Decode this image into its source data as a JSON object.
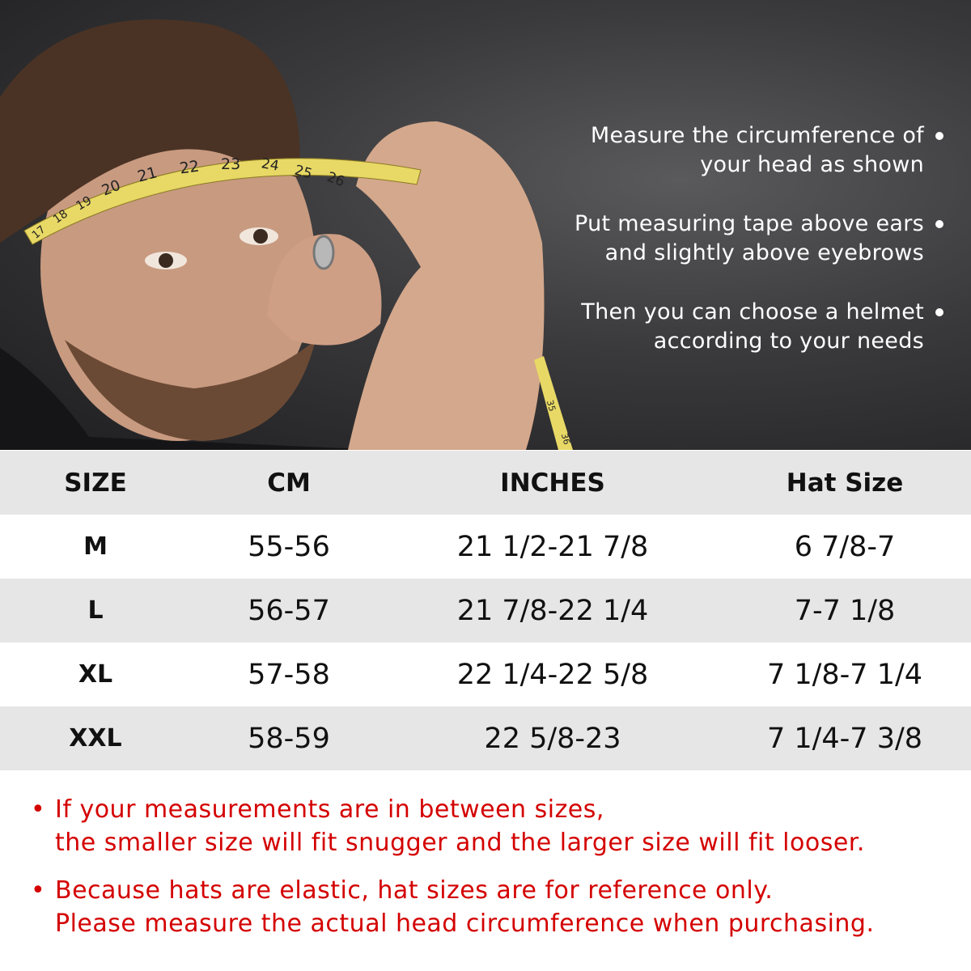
{
  "photo": {
    "tape_marks": [
      "17",
      "18",
      "19",
      "20",
      "21",
      "22",
      "23",
      "24",
      "25",
      "26"
    ],
    "tape_marks_lower": [
      "35",
      "36"
    ]
  },
  "tips": [
    {
      "text": "Measure the circumference of\nyour head as shown"
    },
    {
      "text": "Put measuring tape above ears\nand slightly above eyebrows"
    },
    {
      "text": "Then you can choose a helmet\naccording to your needs"
    }
  ],
  "table": {
    "headers": [
      "SIZE",
      "CM",
      "INCHES",
      "Hat Size"
    ],
    "rows": [
      [
        "M",
        "55-56",
        "21 1/2-21 7/8",
        "6 7/8-7"
      ],
      [
        "L",
        "56-57",
        "21 7/8-22 1/4",
        "7-7 1/8"
      ],
      [
        "XL",
        "57-58",
        "22 1/4-22 5/8",
        "7 1/8-7 1/4"
      ],
      [
        "XXL",
        "58-59",
        "22 5/8-23",
        "7 1/4-7 3/8"
      ]
    ]
  },
  "notes": [
    {
      "text": "If your measurements are in between sizes,\nthe smaller size will fit snugger and the larger size will fit looser."
    },
    {
      "text": "Because hats are elastic, hat sizes are for reference only.\nPlease measure the actual head circumference when purchasing."
    }
  ],
  "colors": {
    "note_red": "#d40000",
    "row_gray": "#e6e6e6",
    "tape_yellow": "#e8d866"
  }
}
